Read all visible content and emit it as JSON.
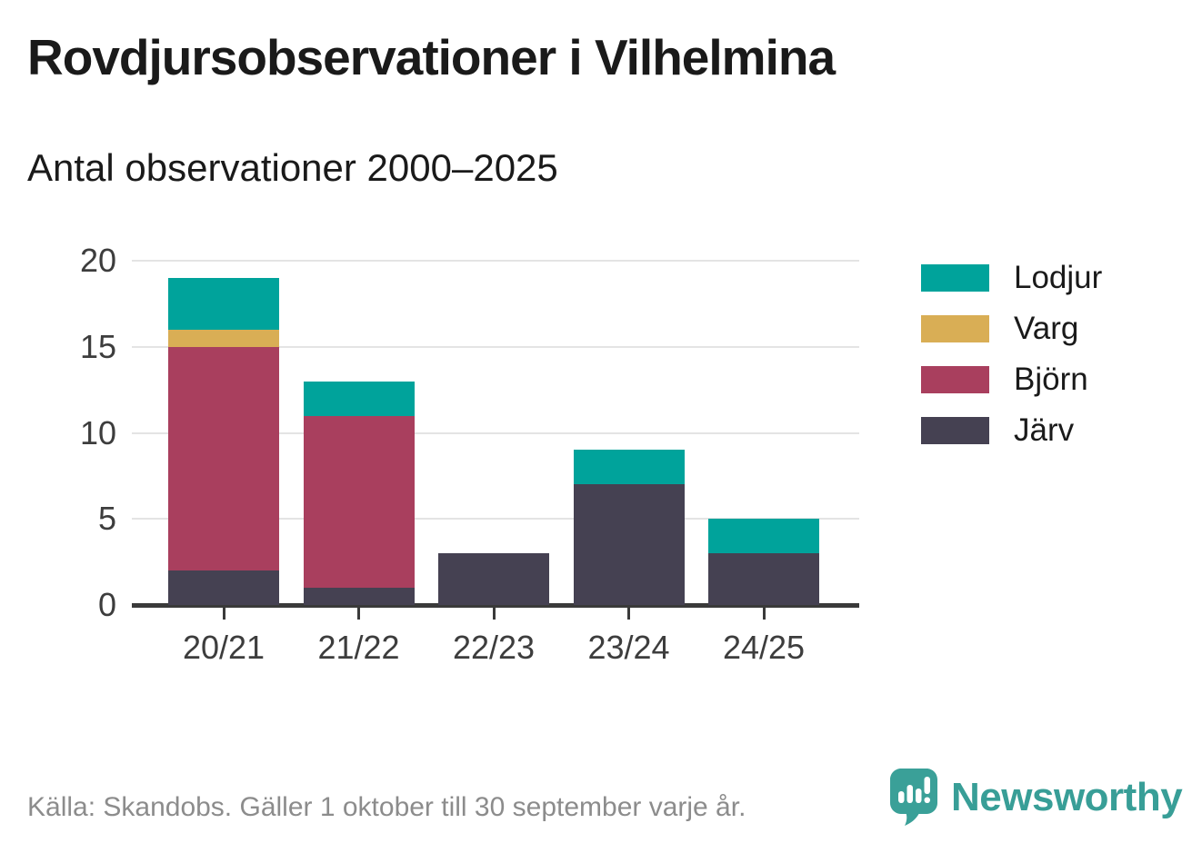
{
  "title": "Rovdjursobservationer i Vilhelmina",
  "subtitle": "Antal observationer 2000–2025",
  "footer": {
    "source": "Källa: Skandobs. Gäller 1 oktober till 30 september varje år.",
    "brand": "Newsworthy"
  },
  "icons": {
    "logo": "newsworthy-pin-icon"
  },
  "colors": {
    "lodjur": "#00a39b",
    "varg": "#d9ae55",
    "bjorn": "#a93f5e",
    "jarv": "#454152",
    "axis": "#3a3a3a",
    "grid": "#e4e4e4",
    "text": "#1a1a1a",
    "muted": "#8c8c8c",
    "brand_teal": "#389e97"
  },
  "chart_data": {
    "type": "bar",
    "stacked": true,
    "title": "Rovdjursobservationer i Vilhelmina",
    "subtitle": "Antal observationer 2000–2025",
    "categories": [
      "20/21",
      "21/22",
      "22/23",
      "23/24",
      "24/25"
    ],
    "series": [
      {
        "name": "Lodjur",
        "color": "#00a39b",
        "values": [
          3,
          2,
          0,
          2,
          2
        ]
      },
      {
        "name": "Varg",
        "color": "#d9ae55",
        "values": [
          1,
          0,
          0,
          0,
          0
        ]
      },
      {
        "name": "Björn",
        "color": "#a93f5e",
        "values": [
          13,
          10,
          0,
          0,
          0
        ]
      },
      {
        "name": "Järv",
        "color": "#454152",
        "values": [
          2,
          1,
          3,
          7,
          3
        ]
      }
    ],
    "totals": [
      19,
      13,
      3,
      9,
      5
    ],
    "xlabel": "",
    "ylabel": "",
    "ylim": [
      0,
      20
    ],
    "yticks": [
      0,
      5,
      10,
      15,
      20
    ],
    "grid": true,
    "legend_position": "right",
    "legend_order": [
      "Lodjur",
      "Varg",
      "Björn",
      "Järv"
    ]
  }
}
